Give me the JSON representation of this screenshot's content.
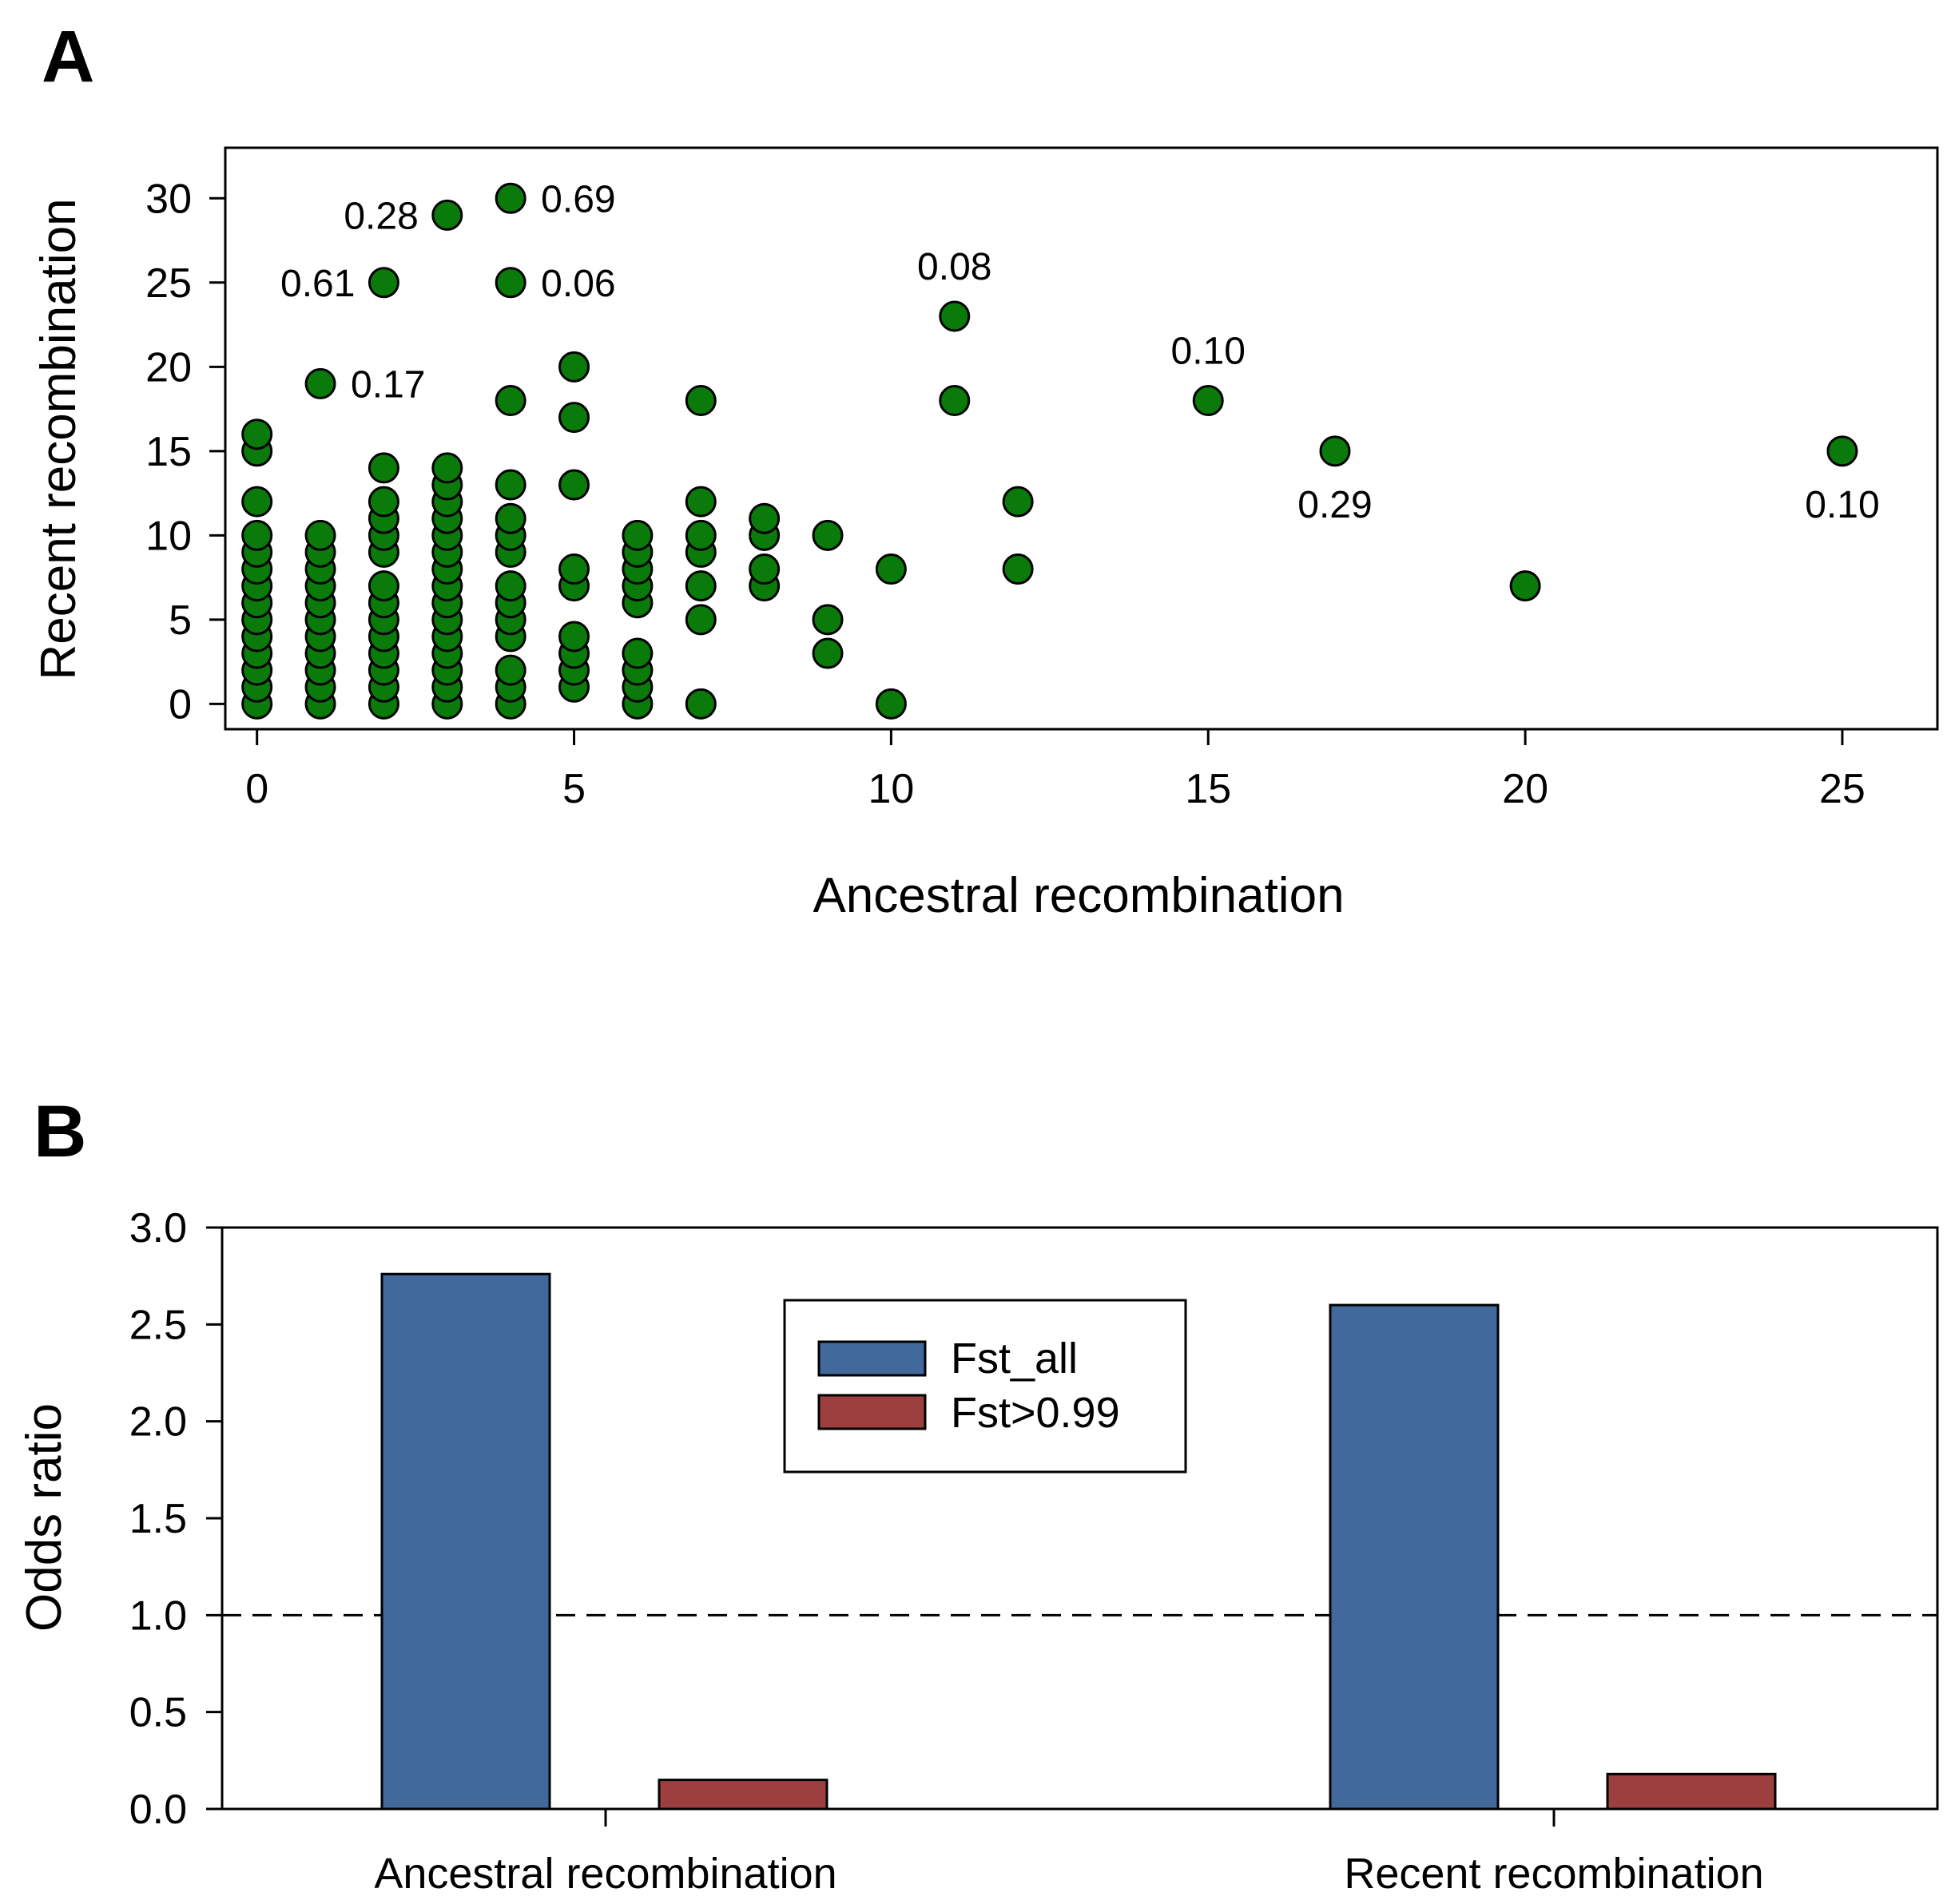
{
  "chart_data": [
    {
      "panel": "A",
      "type": "scatter",
      "xlabel": "Ancestral recombination",
      "ylabel": "Recent recombination",
      "xlim": [
        -0.5,
        26.5
      ],
      "ylim": [
        -1.5,
        33
      ],
      "xticks": [
        0,
        5,
        10,
        15,
        20,
        25
      ],
      "yticks": [
        0,
        5,
        10,
        15,
        20,
        25,
        30
      ],
      "marker_color": "#0a7a0a",
      "marker_edge": "#000000",
      "points": [
        [
          0,
          0
        ],
        [
          0,
          1
        ],
        [
          0,
          2
        ],
        [
          0,
          3
        ],
        [
          0,
          4
        ],
        [
          0,
          5
        ],
        [
          0,
          6
        ],
        [
          0,
          7
        ],
        [
          0,
          8
        ],
        [
          0,
          9
        ],
        [
          0,
          10
        ],
        [
          0,
          12
        ],
        [
          0,
          15
        ],
        [
          0,
          16
        ],
        [
          1,
          0
        ],
        [
          1,
          1
        ],
        [
          1,
          2
        ],
        [
          1,
          3
        ],
        [
          1,
          4
        ],
        [
          1,
          5
        ],
        [
          1,
          6
        ],
        [
          1,
          7
        ],
        [
          1,
          8
        ],
        [
          1,
          9
        ],
        [
          1,
          10
        ],
        [
          1,
          19
        ],
        [
          2,
          0
        ],
        [
          2,
          1
        ],
        [
          2,
          2
        ],
        [
          2,
          3
        ],
        [
          2,
          4
        ],
        [
          2,
          5
        ],
        [
          2,
          6
        ],
        [
          2,
          7
        ],
        [
          2,
          9
        ],
        [
          2,
          10
        ],
        [
          2,
          11
        ],
        [
          2,
          12
        ],
        [
          2,
          14
        ],
        [
          2,
          25
        ],
        [
          3,
          0
        ],
        [
          3,
          1
        ],
        [
          3,
          2
        ],
        [
          3,
          3
        ],
        [
          3,
          4
        ],
        [
          3,
          5
        ],
        [
          3,
          6
        ],
        [
          3,
          7
        ],
        [
          3,
          8
        ],
        [
          3,
          9
        ],
        [
          3,
          10
        ],
        [
          3,
          11
        ],
        [
          3,
          12
        ],
        [
          3,
          13
        ],
        [
          3,
          14
        ],
        [
          3,
          29
        ],
        [
          4,
          0
        ],
        [
          4,
          1
        ],
        [
          4,
          2
        ],
        [
          4,
          4
        ],
        [
          4,
          5
        ],
        [
          4,
          6
        ],
        [
          4,
          7
        ],
        [
          4,
          9
        ],
        [
          4,
          10
        ],
        [
          4,
          11
        ],
        [
          4,
          13
        ],
        [
          4,
          18
        ],
        [
          4,
          25
        ],
        [
          4,
          30
        ],
        [
          5,
          1
        ],
        [
          5,
          2
        ],
        [
          5,
          3
        ],
        [
          5,
          4
        ],
        [
          5,
          7
        ],
        [
          5,
          8
        ],
        [
          5,
          13
        ],
        [
          5,
          17
        ],
        [
          5,
          20
        ],
        [
          6,
          0
        ],
        [
          6,
          1
        ],
        [
          6,
          2
        ],
        [
          6,
          3
        ],
        [
          6,
          6
        ],
        [
          6,
          7
        ],
        [
          6,
          8
        ],
        [
          6,
          9
        ],
        [
          6,
          10
        ],
        [
          7,
          0
        ],
        [
          7,
          5
        ],
        [
          7,
          7
        ],
        [
          7,
          9
        ],
        [
          7,
          10
        ],
        [
          7,
          12
        ],
        [
          7,
          18
        ],
        [
          8,
          7
        ],
        [
          8,
          8
        ],
        [
          8,
          10
        ],
        [
          8,
          11
        ],
        [
          9,
          3
        ],
        [
          9,
          5
        ],
        [
          9,
          10
        ],
        [
          10,
          0
        ],
        [
          10,
          8
        ],
        [
          11,
          18
        ],
        [
          11,
          23
        ],
        [
          12,
          8
        ],
        [
          12,
          12
        ],
        [
          15,
          18
        ],
        [
          17,
          15
        ],
        [
          20,
          7
        ],
        [
          25,
          15
        ]
      ],
      "annotations": [
        {
          "x": 3,
          "y": 29,
          "text": "0.28",
          "side": "left"
        },
        {
          "x": 4,
          "y": 30,
          "text": "0.69",
          "side": "right"
        },
        {
          "x": 2,
          "y": 25,
          "text": "0.61",
          "side": "left"
        },
        {
          "x": 4,
          "y": 25,
          "text": "0.06",
          "side": "right"
        },
        {
          "x": 1,
          "y": 19,
          "text": "0.17",
          "side": "right"
        },
        {
          "x": 11,
          "y": 23,
          "text": "0.08",
          "side": "above"
        },
        {
          "x": 15,
          "y": 18,
          "text": "0.10",
          "side": "above"
        },
        {
          "x": 17,
          "y": 15,
          "text": "0.29",
          "side": "below"
        },
        {
          "x": 25,
          "y": 15,
          "text": "0.10",
          "side": "below"
        }
      ]
    },
    {
      "panel": "B",
      "type": "bar",
      "ylabel": "Odds ratio",
      "ylim": [
        0,
        3.0
      ],
      "yticks": [
        "0.0",
        "0.5",
        "1.0",
        "1.5",
        "2.0",
        "2.5",
        "3.0"
      ],
      "categories": [
        "Ancestral recombination",
        "Recent recombination"
      ],
      "series": [
        {
          "name": "Fst_all",
          "color": "#41699b",
          "values": [
            2.76,
            2.6
          ]
        },
        {
          "name": "Fst>0.99",
          "color": "#9e3f3f",
          "values": [
            0.15,
            0.18
          ]
        }
      ],
      "reference_line": 1.0,
      "legend": "top-center"
    }
  ]
}
